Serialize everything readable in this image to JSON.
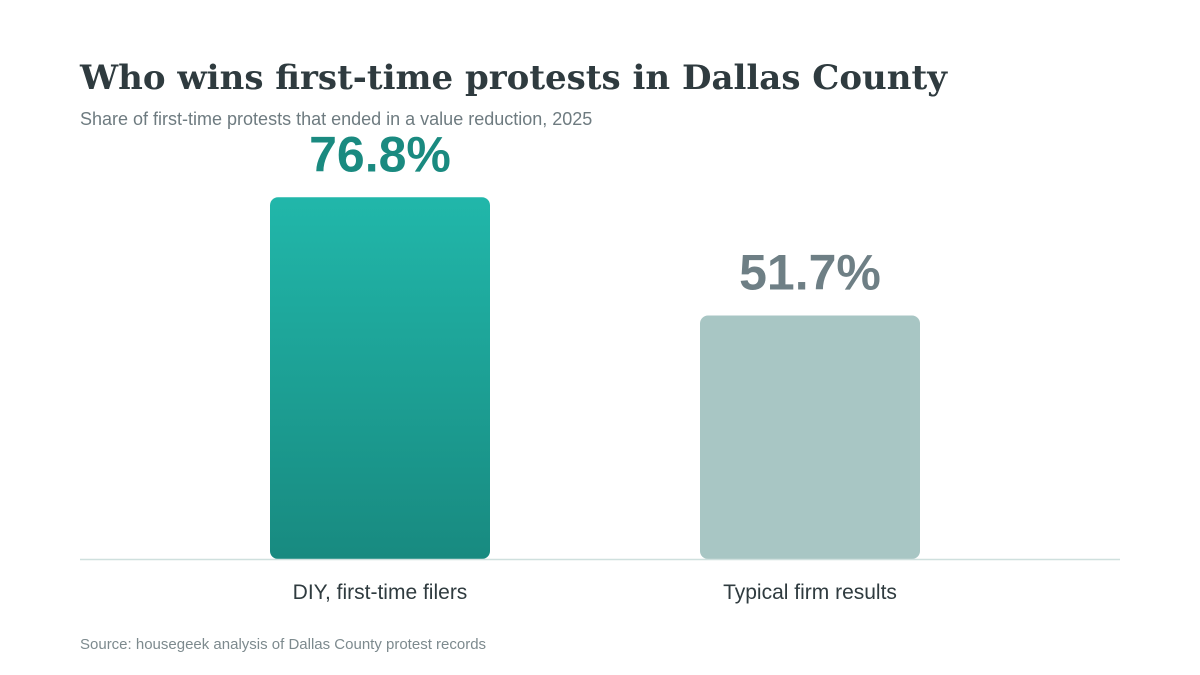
{
  "title": "Who wins first-time protests in Dallas County",
  "subtitle": "Share of first-time protests that ended in a value reduction, 2025",
  "source": "Source: housegeek analysis of Dallas County protest records",
  "chart_data": {
    "type": "bar",
    "title": "Who wins first-time protests in Dallas County",
    "subtitle": "Share of first-time protests that ended in a value reduction, 2025",
    "categories": [
      "DIY, first-time filers",
      "Typical firm results"
    ],
    "values": [
      76.8,
      51.7
    ],
    "data_labels": [
      "76.8%",
      "51.7%"
    ],
    "unit": "%",
    "xlabel": "",
    "ylabel": "",
    "ylim": [
      0,
      100
    ],
    "grid": false,
    "legend": "none",
    "colors": {
      "bar_primary_top": "#21b7aa",
      "bar_primary_bottom": "#188a80",
      "bar_secondary": "#a8c6c4",
      "label_primary": "#1a8a80",
      "label_secondary": "#6e7f85",
      "baseline": "#cfe0de",
      "category_text": "#2f3b3f"
    }
  }
}
